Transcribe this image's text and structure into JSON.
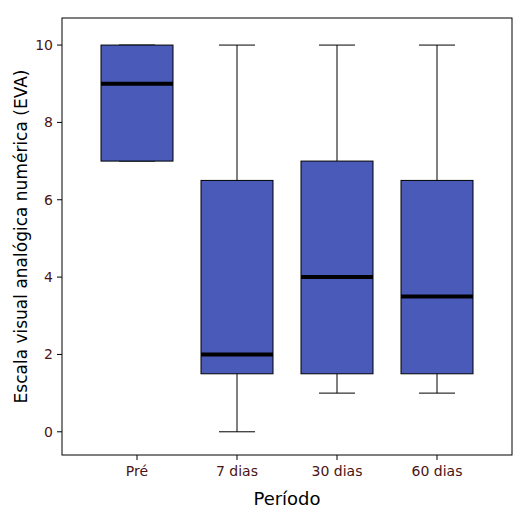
{
  "chart_data": {
    "type": "box",
    "x_label": "Período",
    "y_label": "Escala visual analógica numérica (EVA)",
    "categories": [
      "Pré",
      "7 dias",
      "30 dias",
      "60 dias"
    ],
    "min": [
      7,
      0,
      1,
      1
    ],
    "q1": [
      7,
      1.5,
      1.5,
      1.5
    ],
    "median": [
      9,
      2,
      4,
      3.5
    ],
    "q3": [
      10,
      6.5,
      7,
      6.5
    ],
    "max": [
      10,
      10,
      10,
      10
    ],
    "color": "#4a5ab9",
    "ylim": [
      -0.6,
      10.7
    ],
    "yticks": [
      0,
      2,
      4,
      6,
      8,
      10
    ],
    "grid": false
  }
}
